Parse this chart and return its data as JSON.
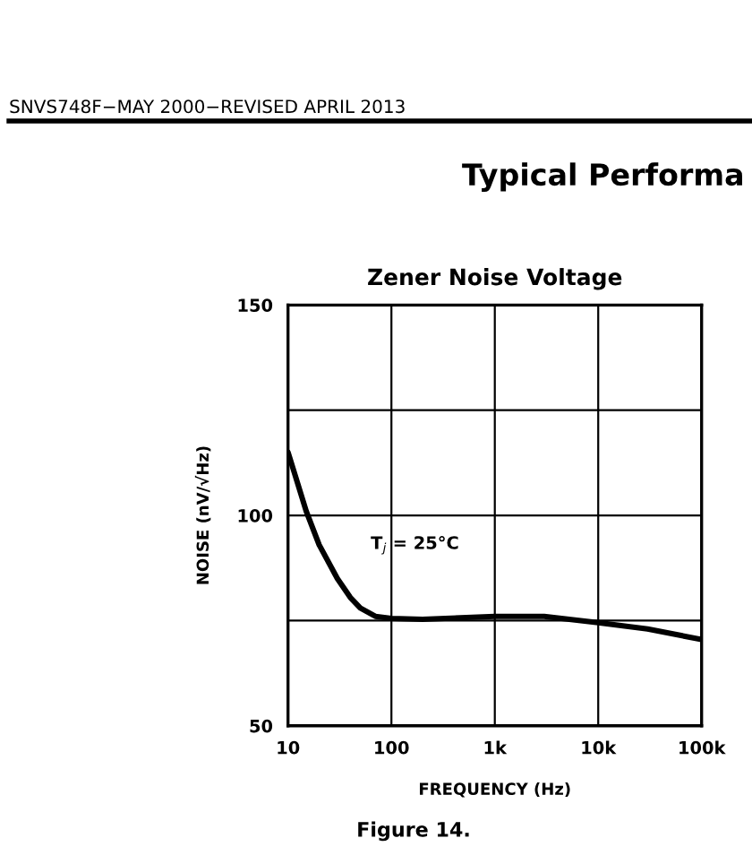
{
  "chart_data": {
    "type": "line",
    "title": "Zener Noise Voltage",
    "xlabel": "FREQUENCY (Hz)",
    "ylabel": "NOISE (nV/√Hz)",
    "annotations": [
      "T$_{j}$ = 25°C",
      "SNVS748F−MAY 2000−REVISED APRIL 2013",
      "Typical Performa",
      "Figure 14."
    ],
    "log": "x",
    "series": [
      {
        "color": "#000000",
        "x": [
          10,
          15,
          20,
          30,
          40,
          50,
          70,
          100,
          200,
          1000,
          3000,
          10000,
          30000,
          100000
        ],
        "values": [
          115,
          101,
          93,
          85,
          80.5,
          78,
          76,
          75.5,
          75.3,
          76,
          76,
          74.5,
          73,
          70.5
        ]
      }
    ],
    "xlim": [
      10,
      100000
    ],
    "ylim": [
      50,
      150
    ],
    "xticks": [
      {
        "value": 10,
        "label": "10"
      },
      {
        "value": 100,
        "label": "100"
      },
      {
        "value": 1000,
        "label": "1k"
      },
      {
        "value": 10000,
        "label": "10k"
      },
      {
        "value": 100000,
        "label": "100k"
      }
    ],
    "yticks": [
      50,
      {
        "value": 75,
        "label": null
      },
      100,
      {
        "value": 125,
        "label": null
      },
      150
    ],
    "grid": true,
    "legend": false
  }
}
